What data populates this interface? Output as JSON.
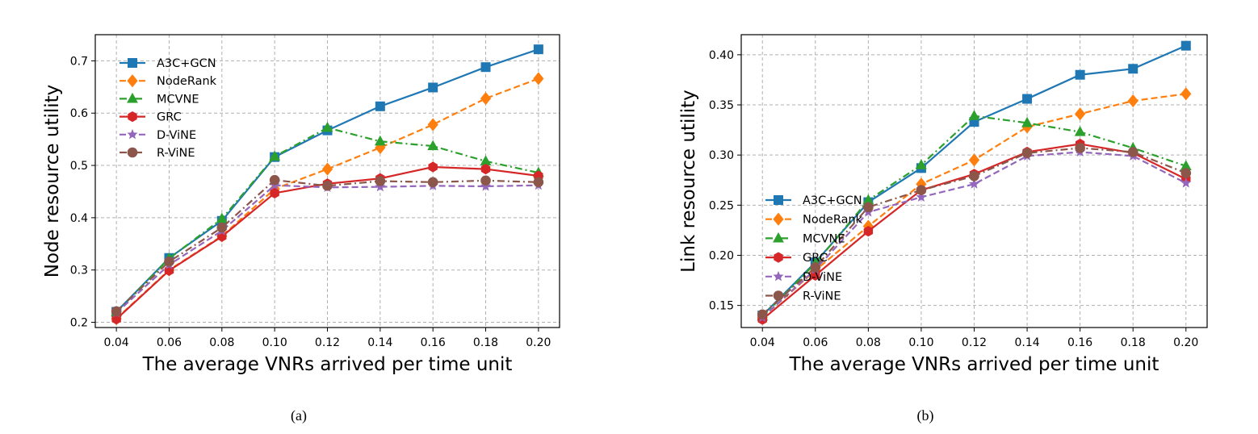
{
  "figure": {
    "captions": [
      "(a)",
      "(b)"
    ]
  },
  "legend_entries": [
    "A3C+GCN",
    "NodeRank",
    "MCVNE",
    "GRC",
    "D-ViNE",
    "R-ViNE"
  ],
  "series_styles": [
    {
      "name": "A3C+GCN",
      "color": "#1f77b4",
      "marker": "square",
      "dash": "solid"
    },
    {
      "name": "NodeRank",
      "color": "#ff7f0e",
      "marker": "diamond",
      "dash": "dashed"
    },
    {
      "name": "MCVNE",
      "color": "#2ca02c",
      "marker": "triangle",
      "dash": "dashdot"
    },
    {
      "name": "GRC",
      "color": "#d62728",
      "marker": "hexagon",
      "dash": "solid"
    },
    {
      "name": "D-ViNE",
      "color": "#9467bd",
      "marker": "star",
      "dash": "dashed"
    },
    {
      "name": "R-ViNE",
      "color": "#8c564b",
      "marker": "circle",
      "dash": "dashdot"
    }
  ],
  "chart_data": [
    {
      "type": "line",
      "caption": "(a)",
      "title": "",
      "xlabel": "The average VNRs arrived per time unit",
      "ylabel": "Node resource utility",
      "x": [
        0.04,
        0.06,
        0.08,
        0.1,
        0.12,
        0.14,
        0.16,
        0.18,
        0.2
      ],
      "x_tick_labels": [
        "0.04",
        "0.06",
        "0.08",
        "0.10",
        "0.12",
        "0.14",
        "0.16",
        "0.18",
        "0.20"
      ],
      "y_ticks": [
        0.2,
        0.3,
        0.4,
        0.5,
        0.6,
        0.7
      ],
      "y_tick_labels": [
        "0.2",
        "0.3",
        "0.4",
        "0.5",
        "0.6",
        "0.7"
      ],
      "xlim": [
        0.032,
        0.208
      ],
      "ylim": [
        0.19,
        0.75
      ],
      "grid": true,
      "legend_position": "upper-left",
      "series": [
        {
          "name": "A3C+GCN",
          "values": [
            0.22,
            0.323,
            0.394,
            0.516,
            0.567,
            0.613,
            0.649,
            0.688,
            0.722
          ]
        },
        {
          "name": "NodeRank",
          "values": [
            0.207,
            0.3,
            0.365,
            0.455,
            0.493,
            0.534,
            0.578,
            0.628,
            0.666
          ]
        },
        {
          "name": "MCVNE",
          "values": [
            0.219,
            0.322,
            0.398,
            0.517,
            0.572,
            0.546,
            0.537,
            0.508,
            0.486
          ]
        },
        {
          "name": "GRC",
          "values": [
            0.206,
            0.299,
            0.364,
            0.447,
            0.465,
            0.475,
            0.497,
            0.493,
            0.48
          ]
        },
        {
          "name": "D-ViNE",
          "values": [
            0.218,
            0.31,
            0.375,
            0.462,
            0.458,
            0.459,
            0.461,
            0.46,
            0.462
          ]
        },
        {
          "name": "R-ViNE",
          "values": [
            0.221,
            0.316,
            0.381,
            0.472,
            0.461,
            0.47,
            0.468,
            0.471,
            0.468
          ]
        }
      ]
    },
    {
      "type": "line",
      "caption": "(b)",
      "title": "",
      "xlabel": "The average VNRs arrived per time unit",
      "ylabel": "Link resource utility",
      "x": [
        0.04,
        0.06,
        0.08,
        0.1,
        0.12,
        0.14,
        0.16,
        0.18,
        0.2
      ],
      "x_tick_labels": [
        "0.04",
        "0.06",
        "0.08",
        "0.10",
        "0.12",
        "0.14",
        "0.16",
        "0.18",
        "0.20"
      ],
      "y_ticks": [
        0.15,
        0.2,
        0.25,
        0.3,
        0.35,
        0.4
      ],
      "y_tick_labels": [
        "0.15",
        "0.20",
        "0.25",
        "0.30",
        "0.35",
        "0.40"
      ],
      "xlim": [
        0.032,
        0.208
      ],
      "ylim": [
        0.128,
        0.42
      ],
      "grid": true,
      "legend_position": "center-left",
      "series": [
        {
          "name": "A3C+GCN",
          "values": [
            0.14,
            0.193,
            0.253,
            0.287,
            0.333,
            0.356,
            0.38,
            0.386,
            0.409
          ]
        },
        {
          "name": "NodeRank",
          "values": [
            0.138,
            0.185,
            0.229,
            0.271,
            0.295,
            0.328,
            0.341,
            0.354,
            0.361
          ]
        },
        {
          "name": "MCVNE",
          "values": [
            0.139,
            0.192,
            0.255,
            0.29,
            0.339,
            0.332,
            0.323,
            0.307,
            0.289
          ]
        },
        {
          "name": "GRC",
          "values": [
            0.136,
            0.18,
            0.224,
            0.265,
            0.281,
            0.303,
            0.311,
            0.302,
            0.276
          ]
        },
        {
          "name": "D-ViNE",
          "values": [
            0.138,
            0.186,
            0.243,
            0.258,
            0.271,
            0.299,
            0.303,
            0.299,
            0.272
          ]
        },
        {
          "name": "R-ViNE",
          "values": [
            0.141,
            0.188,
            0.248,
            0.265,
            0.279,
            0.302,
            0.307,
            0.303,
            0.282
          ]
        }
      ]
    }
  ]
}
